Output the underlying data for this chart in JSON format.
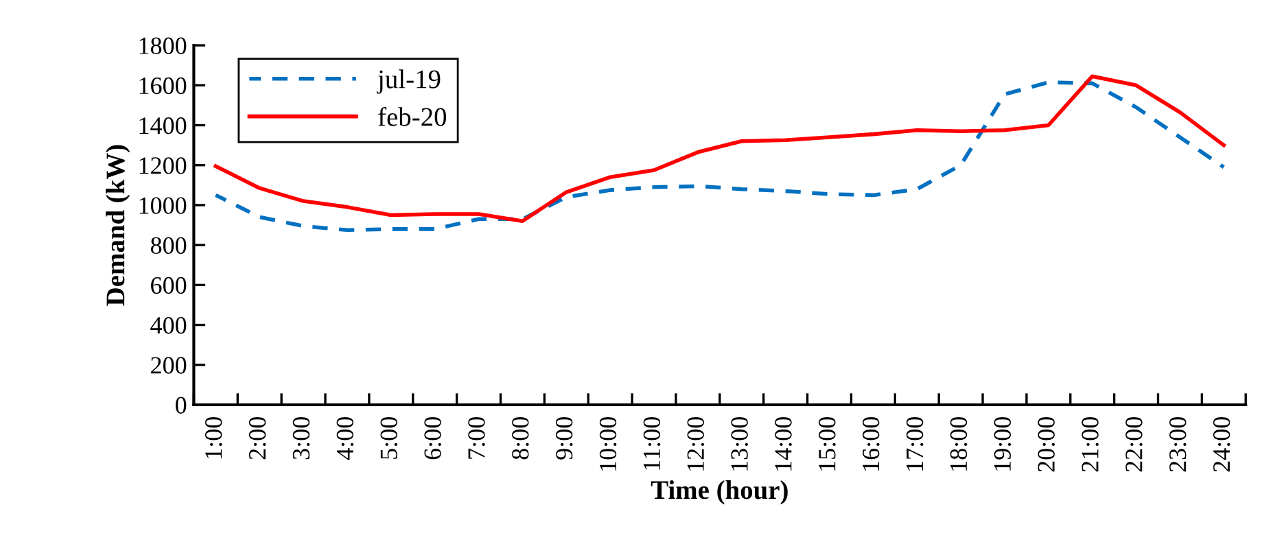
{
  "chart_data": {
    "type": "line",
    "xlabel": "Time (hour)",
    "ylabel": "Demand (kW)",
    "categories": [
      "1:00",
      "2:00",
      "3:00",
      "4:00",
      "5:00",
      "6:00",
      "7:00",
      "8:00",
      "9:00",
      "10:00",
      "11:00",
      "12:00",
      "13:00",
      "14:00",
      "15:00",
      "16:00",
      "17:00",
      "18:00",
      "19:00",
      "20:00",
      "21:00",
      "22:00",
      "23:00",
      "24:00"
    ],
    "series": [
      {
        "name": "jul-19",
        "color": "#0070c0",
        "line_style": "dashed",
        "values": [
          1050,
          940,
          895,
          875,
          880,
          880,
          930,
          930,
          1040,
          1075,
          1090,
          1095,
          1080,
          1070,
          1055,
          1050,
          1080,
          1200,
          1555,
          1615,
          1610,
          1490,
          1340,
          1190
        ]
      },
      {
        "name": "feb-20",
        "color": "#ff0000",
        "line_style": "solid",
        "values": [
          1195,
          1085,
          1020,
          990,
          950,
          955,
          955,
          920,
          1065,
          1140,
          1175,
          1265,
          1320,
          1325,
          1340,
          1355,
          1375,
          1370,
          1375,
          1400,
          1645,
          1600,
          1465,
          1300
        ]
      }
    ],
    "ylim": [
      0,
      1800
    ],
    "yticks": [
      0,
      200,
      400,
      600,
      800,
      1000,
      1200,
      1400,
      1600,
      1800
    ],
    "grid": false,
    "legend": "top left",
    "marker": "none"
  }
}
